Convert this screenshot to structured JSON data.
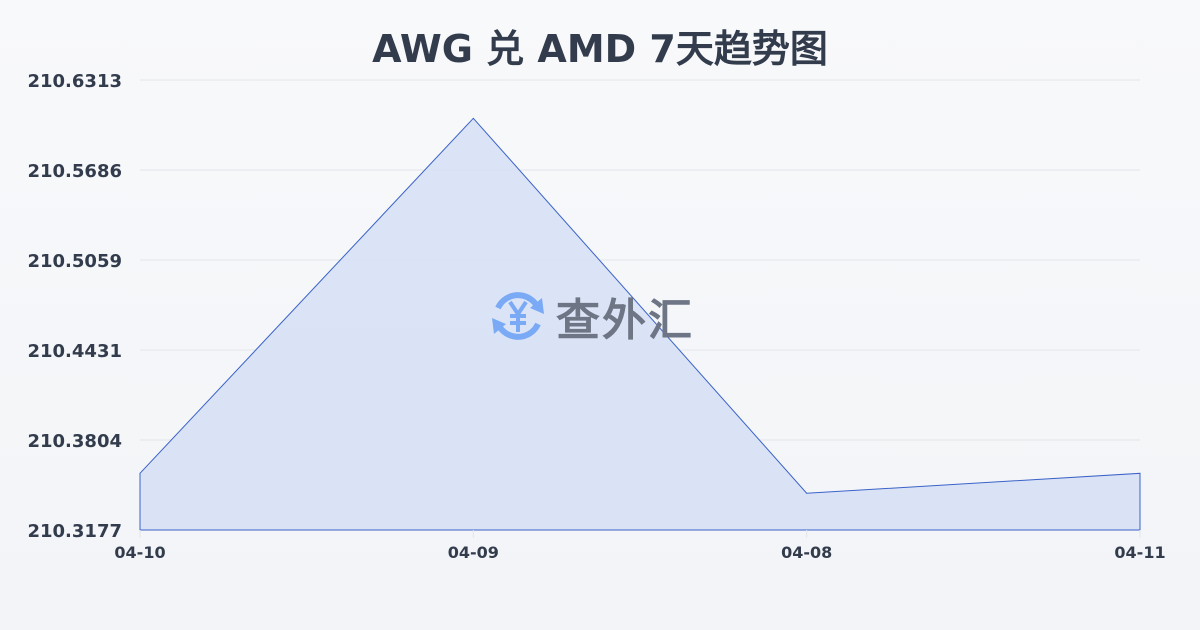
{
  "title": "AWG 兑 AMD 7天趋势图",
  "watermark": {
    "text": "查外汇",
    "icon": "yen-exchange-icon",
    "icon_color": "#7aaaf5"
  },
  "colors": {
    "line": "#3a62c8",
    "fill": "#d7e1f5",
    "grid": "#e3e5ea",
    "text": "#333c4c"
  },
  "chart_data": {
    "type": "area",
    "title": "AWG 兑 AMD 7天趋势图",
    "categories": [
      "04-10",
      "04-09",
      "04-08",
      "04-11"
    ],
    "values": [
      210.3572,
      210.6046,
      210.3433,
      210.3572
    ],
    "ylim": [
      210.3177,
      210.6313
    ],
    "yticks": [
      "210.3177",
      "210.3804",
      "210.4431",
      "210.5059",
      "210.5686",
      "210.6313"
    ],
    "grid": true,
    "xlabel": "",
    "ylabel": ""
  }
}
